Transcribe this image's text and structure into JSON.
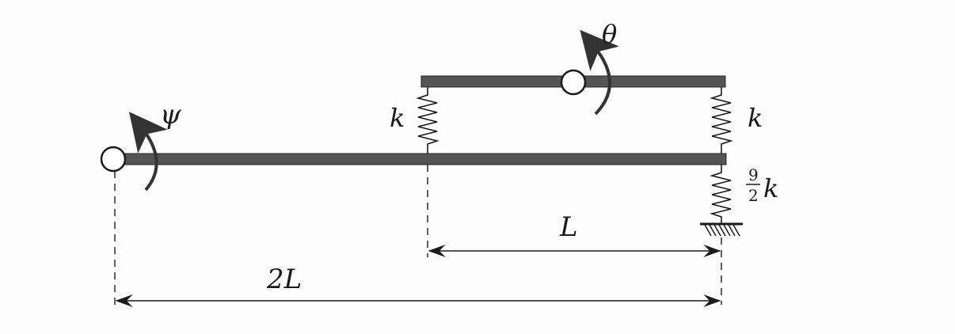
{
  "labels": {
    "psi": "ψ",
    "theta": "θ",
    "k_left": "k",
    "k_right": "k",
    "ground_spring": {
      "numerator": "9",
      "denominator": "2",
      "symbol": "k"
    },
    "dim_L": "L",
    "dim_2L": "2L"
  },
  "colors": {
    "beam": "#555555",
    "line": "#1a1a1a",
    "background": "#fdfdfd"
  }
}
